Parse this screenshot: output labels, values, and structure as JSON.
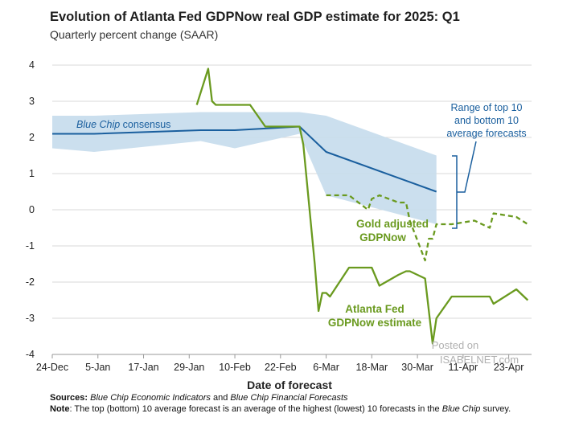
{
  "title": "Evolution of Atlanta Fed GDPNow real GDP estimate for 2025: Q1",
  "subtitle": "Quarterly percent change (SAAR)",
  "footer": {
    "sources_label": "Sources:",
    "sources_text_1": "Blue Chip Economic Indicators",
    "sources_and": " and ",
    "sources_text_2": "Blue Chip Financial Forecasts",
    "note_label": "Note",
    "note_text": ": The top (bottom) 10 average forecast is an average of the highest (lowest) 10 forecasts in the ",
    "note_italic": "Blue Chip",
    "note_end": " survey."
  },
  "annotations": {
    "bluechip_italic": "Blue Chip",
    "bluechip_rest": " consensus",
    "range_line1": "Range of top 10",
    "range_line2": "and bottom 10",
    "range_line3": "average forecasts",
    "gold_line1": "Gold adjusted",
    "gold_line2": "GDPNow",
    "atl_line1": "Atlanta Fed",
    "atl_line2": "GDPNow estimate",
    "watermark_line1": "Posted on",
    "watermark_line2": "ISABELNET.com"
  },
  "colors": {
    "blue_line": "#1a5f9e",
    "band": "#c5dbec",
    "green": "#6a9a1f",
    "grid": "#d9d9d9"
  },
  "chart_data": {
    "type": "line",
    "xlabel": "Date of forecast",
    "ylabel": "",
    "ylim": [
      -4,
      4
    ],
    "yticks": [
      4,
      3,
      2,
      1,
      0,
      -1,
      -2,
      -3,
      -4
    ],
    "x_tick_labels": [
      "24-Dec",
      "5-Jan",
      "17-Jan",
      "29-Jan",
      "10-Feb",
      "22-Feb",
      "6-Mar",
      "18-Mar",
      "30-Mar",
      "11-Apr",
      "23-Apr"
    ],
    "x_tick_dates": [
      "2024-12-24",
      "2025-01-05",
      "2025-01-17",
      "2025-01-29",
      "2025-02-10",
      "2025-02-22",
      "2025-03-06",
      "2025-03-18",
      "2025-03-30",
      "2025-04-11",
      "2025-04-23"
    ],
    "x_range": [
      "2024-12-24",
      "2025-04-29"
    ],
    "grid": "horizontal",
    "series": [
      {
        "name": "Blue Chip consensus",
        "x": [
          "2024-12-24",
          "2025-01-04",
          "2025-02-01",
          "2025-02-10",
          "2025-02-27",
          "2025-03-06",
          "2025-04-04"
        ],
        "y": [
          2.1,
          2.1,
          2.2,
          2.2,
          2.3,
          1.6,
          0.5
        ]
      },
      {
        "name": "Range of top 10 and bottom 10 average forecasts (top)",
        "x": [
          "2024-12-24",
          "2025-01-04",
          "2025-02-01",
          "2025-02-10",
          "2025-02-27",
          "2025-03-06",
          "2025-04-04"
        ],
        "y": [
          2.6,
          2.6,
          2.7,
          2.7,
          2.7,
          2.6,
          1.5
        ]
      },
      {
        "name": "Range of top 10 and bottom 10 average forecasts (bottom)",
        "x": [
          "2024-12-24",
          "2025-01-04",
          "2025-02-01",
          "2025-02-10",
          "2025-02-27",
          "2025-03-06",
          "2025-04-04"
        ],
        "y": [
          1.7,
          1.6,
          1.9,
          1.7,
          2.1,
          0.4,
          -0.4
        ]
      },
      {
        "name": "Atlanta Fed GDPNow estimate",
        "x": [
          "2025-01-31",
          "2025-02-03",
          "2025-02-04",
          "2025-02-05",
          "2025-02-07",
          "2025-02-10",
          "2025-02-13",
          "2025-02-14",
          "2025-02-18",
          "2025-02-19",
          "2025-02-21",
          "2025-02-24",
          "2025-02-27",
          "2025-02-28",
          "2025-03-03",
          "2025-03-04",
          "2025-03-05",
          "2025-03-06",
          "2025-03-07",
          "2025-03-12",
          "2025-03-17",
          "2025-03-18",
          "2025-03-20",
          "2025-03-25",
          "2025-03-27",
          "2025-03-28",
          "2025-04-01",
          "2025-04-02",
          "2025-04-03",
          "2025-04-04",
          "2025-04-08",
          "2025-04-14",
          "2025-04-18",
          "2025-04-19",
          "2025-04-25",
          "2025-04-28"
        ],
        "y": [
          2.9,
          3.9,
          3.0,
          2.9,
          2.9,
          2.9,
          2.9,
          2.9,
          2.3,
          2.3,
          2.3,
          2.3,
          2.3,
          1.8,
          -1.5,
          -2.8,
          -2.3,
          -2.3,
          -2.4,
          -1.6,
          -1.6,
          -1.6,
          -2.1,
          -1.8,
          -1.7,
          -1.7,
          -1.9,
          -2.8,
          -3.7,
          -3.0,
          -2.4,
          -2.4,
          -2.4,
          -2.6,
          -2.2,
          -2.5
        ]
      },
      {
        "name": "Gold adjusted GDPNow",
        "x": [
          "2025-03-06",
          "2025-03-07",
          "2025-03-12",
          "2025-03-17",
          "2025-03-18",
          "2025-03-20",
          "2025-03-25",
          "2025-03-27",
          "2025-03-28",
          "2025-04-01",
          "2025-04-02",
          "2025-04-03",
          "2025-04-04",
          "2025-04-08",
          "2025-04-14",
          "2025-04-18",
          "2025-04-19",
          "2025-04-25",
          "2025-04-28"
        ],
        "y": [
          0.4,
          0.4,
          0.4,
          0.0,
          0.3,
          0.4,
          0.2,
          0.2,
          -0.3,
          -1.4,
          -0.8,
          -0.8,
          -0.4,
          -0.4,
          -0.3,
          -0.5,
          -0.1,
          -0.2,
          -0.4
        ]
      }
    ]
  }
}
